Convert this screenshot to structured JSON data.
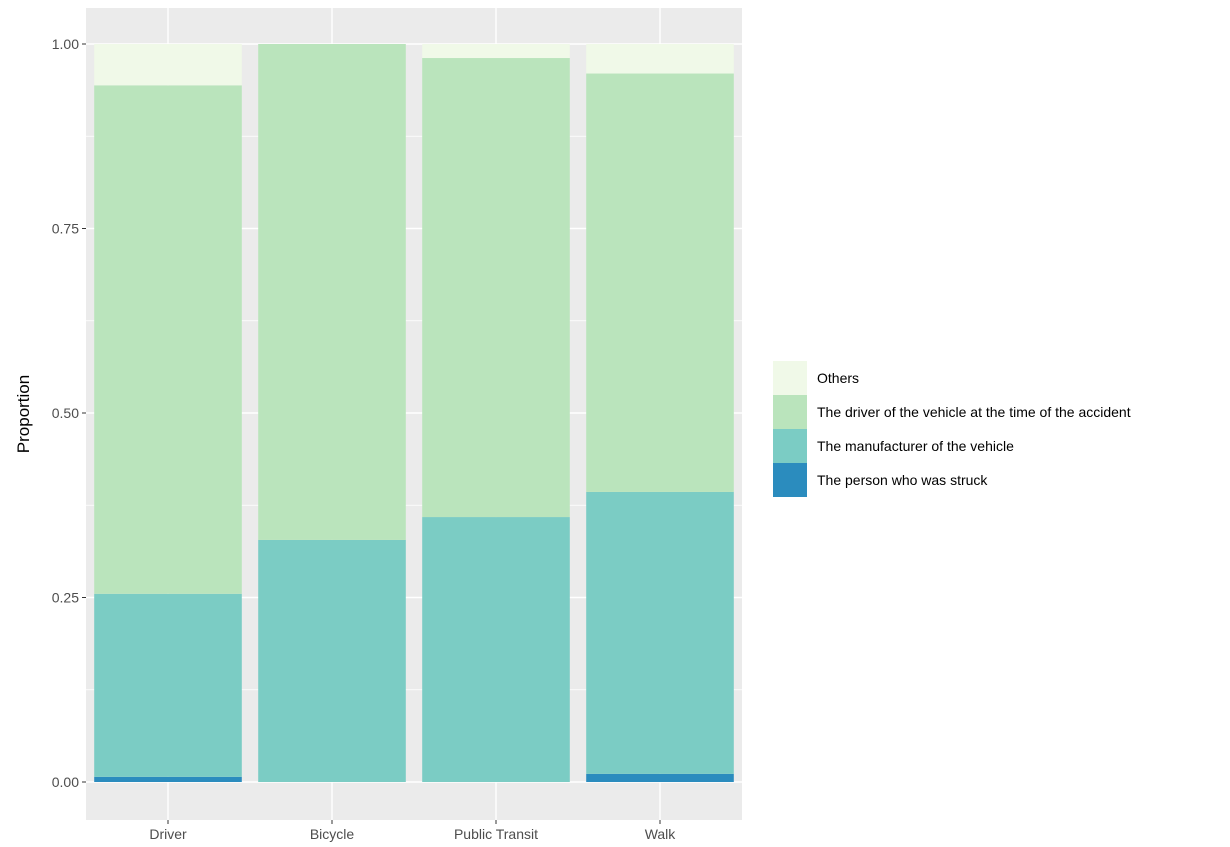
{
  "chart_data": {
    "type": "bar",
    "stacked": true,
    "title": "",
    "xlabel": "",
    "ylabel": "Proportion",
    "ylim": [
      0,
      1
    ],
    "grid": true,
    "legend_position": "right",
    "categories": [
      "Driver",
      "Bicycle",
      "Public Transit",
      "Walk"
    ],
    "y_ticks": [
      "0.00",
      "0.25",
      "0.50",
      "0.75",
      "1.00"
    ],
    "series": [
      {
        "name": "The person who was struck",
        "color": "#2b8cbe",
        "values": [
          0.007,
          0.0,
          0.0,
          0.011
        ]
      },
      {
        "name": "The manufacturer of the vehicle",
        "color": "#7bccc4",
        "values": [
          0.248,
          0.328,
          0.359,
          0.382
        ]
      },
      {
        "name": "The driver of the vehicle at the time of the accident",
        "color": "#bae4bc",
        "values": [
          0.689,
          0.672,
          0.622,
          0.567
        ]
      },
      {
        "name": "Others",
        "color": "#f0f9e8",
        "values": [
          0.056,
          0.0,
          0.019,
          0.04
        ]
      }
    ],
    "legend_order": [
      "Others",
      "The driver of the vehicle at the time of the accident",
      "The manufacturer of the vehicle",
      "The person who was struck"
    ],
    "colors": {
      "panel_background": "#ebebeb",
      "grid_line": "#ffffff",
      "tick_text": "#4d4d4d"
    }
  }
}
